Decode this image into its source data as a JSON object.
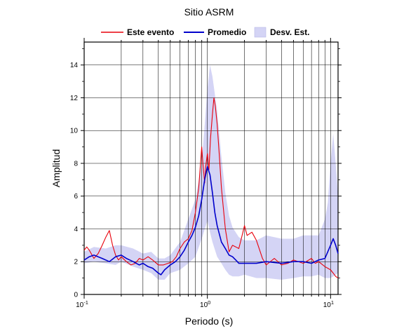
{
  "chart_data": {
    "type": "line",
    "title": "Sitio ASRM",
    "xlabel": "Periodo (s)",
    "ylabel": "Amplitud",
    "x_scale": "log",
    "xlim": [
      0.1,
      11.5
    ],
    "ylim": [
      0,
      15.4
    ],
    "grid": true,
    "legend_position": "top",
    "x_tick_labels": [
      {
        "value": 0.1,
        "base": "10",
        "exp": "-1"
      },
      {
        "value": 1,
        "base": "10",
        "exp": "0"
      },
      {
        "value": 10,
        "base": "10",
        "exp": "1"
      }
    ],
    "y_ticks": [
      0,
      2,
      4,
      6,
      8,
      10,
      12,
      14
    ],
    "y_tick_labels": [
      "0",
      "2",
      "4",
      "6",
      "8",
      "10",
      "12",
      "14"
    ],
    "legend": [
      {
        "label": "Este evento",
        "color": "#e8000b",
        "kind": "line"
      },
      {
        "label": "Promedio",
        "color": "#0000cc",
        "kind": "line"
      },
      {
        "label": "Desv. Est.",
        "color": "#d4d4f5",
        "kind": "band"
      }
    ],
    "series": [
      {
        "name": "Este evento",
        "color": "#e8000b",
        "x": [
          0.1,
          0.105,
          0.11,
          0.12,
          0.13,
          0.14,
          0.15,
          0.16,
          0.17,
          0.18,
          0.19,
          0.2,
          0.22,
          0.24,
          0.26,
          0.28,
          0.3,
          0.33,
          0.36,
          0.4,
          0.44,
          0.48,
          0.52,
          0.56,
          0.6,
          0.65,
          0.7,
          0.75,
          0.8,
          0.85,
          0.88,
          0.9,
          0.92,
          0.95,
          0.97,
          1.0,
          1.03,
          1.06,
          1.1,
          1.13,
          1.16,
          1.2,
          1.25,
          1.3,
          1.4,
          1.5,
          1.6,
          1.7,
          1.8,
          1.9,
          2.0,
          2.1,
          2.3,
          2.5,
          2.8,
          3.0,
          3.5,
          4.0,
          4.5,
          5.0,
          6.0,
          7.0,
          7.5,
          8.0,
          9.0,
          10.0,
          10.5,
          11.0,
          11.5
        ],
        "y": [
          2.7,
          2.9,
          2.7,
          2.2,
          2.5,
          3.0,
          3.5,
          3.9,
          3.0,
          2.4,
          2.1,
          2.3,
          2.0,
          1.8,
          1.9,
          2.2,
          2.1,
          2.3,
          2.1,
          1.8,
          1.8,
          1.9,
          2.0,
          2.3,
          2.8,
          3.2,
          3.4,
          3.9,
          5.0,
          6.5,
          8.0,
          9.0,
          8.0,
          6.8,
          7.8,
          8.6,
          7.6,
          9.5,
          11.0,
          12.0,
          11.5,
          10.4,
          8.5,
          6.5,
          4.0,
          2.6,
          3.0,
          2.9,
          2.8,
          3.5,
          4.2,
          3.6,
          3.8,
          3.3,
          2.2,
          1.8,
          2.2,
          1.8,
          1.9,
          2.1,
          1.9,
          2.2,
          1.9,
          2.0,
          1.7,
          1.5,
          1.3,
          1.1,
          1.0
        ]
      },
      {
        "name": "Promedio",
        "color": "#0000cc",
        "x": [
          0.1,
          0.11,
          0.12,
          0.14,
          0.16,
          0.18,
          0.2,
          0.22,
          0.25,
          0.28,
          0.3,
          0.33,
          0.36,
          0.4,
          0.42,
          0.45,
          0.5,
          0.55,
          0.6,
          0.65,
          0.7,
          0.75,
          0.8,
          0.85,
          0.9,
          0.95,
          1.0,
          1.05,
          1.1,
          1.15,
          1.2,
          1.3,
          1.4,
          1.5,
          1.6,
          1.7,
          1.8,
          2.0,
          2.5,
          3.0,
          4.0,
          5.0,
          6.0,
          7.0,
          8.0,
          9.0,
          10.0,
          10.5,
          11.0,
          11.5
        ],
        "y": [
          2.1,
          2.3,
          2.4,
          2.2,
          2.0,
          2.3,
          2.4,
          2.2,
          2.0,
          1.8,
          1.9,
          1.7,
          1.6,
          1.3,
          1.2,
          1.5,
          1.8,
          2.0,
          2.3,
          2.7,
          3.2,
          3.6,
          4.1,
          4.8,
          5.8,
          7.0,
          7.8,
          7.3,
          6.2,
          5.0,
          4.2,
          3.2,
          2.8,
          2.4,
          2.3,
          2.1,
          1.9,
          1.9,
          1.9,
          2.0,
          1.9,
          2.0,
          2.0,
          1.9,
          2.1,
          2.2,
          3.0,
          3.4,
          3.0,
          2.5
        ]
      }
    ],
    "band": {
      "name": "Desv. Est.",
      "color": "#d4d4f5",
      "x": [
        0.1,
        0.12,
        0.15,
        0.18,
        0.2,
        0.25,
        0.3,
        0.35,
        0.4,
        0.45,
        0.5,
        0.6,
        0.7,
        0.8,
        0.9,
        1.0,
        1.05,
        1.1,
        1.2,
        1.3,
        1.4,
        1.5,
        1.6,
        1.8,
        2.0,
        2.5,
        3.0,
        4.0,
        5.0,
        6.0,
        7.0,
        8.0,
        9.0,
        9.5,
        10.0,
        10.5,
        11.0,
        11.5
      ],
      "upper": [
        2.6,
        2.9,
        2.8,
        3.0,
        3.0,
        2.8,
        2.5,
        2.6,
        2.2,
        2.2,
        2.4,
        3.2,
        4.6,
        5.8,
        8.0,
        12.5,
        14.0,
        13.3,
        11.2,
        8.4,
        6.2,
        4.8,
        4.1,
        3.5,
        3.3,
        3.3,
        3.6,
        3.4,
        3.4,
        3.6,
        3.6,
        3.6,
        4.6,
        5.6,
        8.0,
        9.8,
        8.0,
        6.0
      ],
      "lower": [
        1.9,
        2.0,
        1.9,
        1.8,
        2.0,
        1.7,
        1.5,
        1.3,
        0.9,
        0.9,
        1.3,
        1.5,
        1.9,
        2.3,
        3.4,
        4.5,
        3.8,
        3.2,
        2.3,
        1.9,
        1.5,
        1.2,
        1.1,
        1.1,
        1.2,
        1.0,
        1.0,
        0.9,
        1.0,
        1.1,
        1.1,
        1.2,
        1.0,
        1.0,
        1.0,
        1.1,
        1.2,
        1.3
      ]
    }
  }
}
